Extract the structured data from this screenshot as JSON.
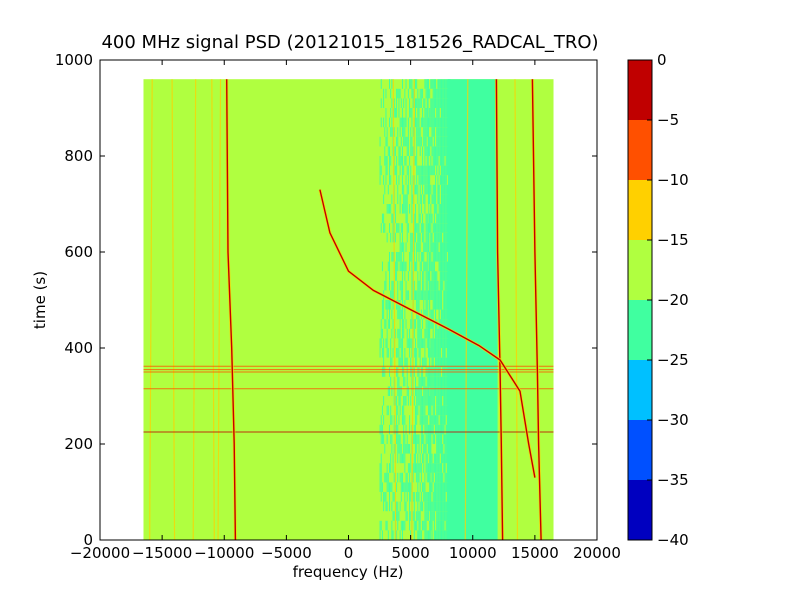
{
  "chart_data": {
    "type": "heatmap",
    "title": "400 MHz signal PSD (20121015_181526_RADCAL_TRO)",
    "xlabel": "frequency (Hz)",
    "ylabel": "time (s)",
    "xlim": [
      -20000,
      20000
    ],
    "ylim": [
      0,
      1000
    ],
    "xticks": [
      -20000,
      -15000,
      -10000,
      -5000,
      0,
      5000,
      10000,
      15000,
      20000
    ],
    "xtick_labels": [
      "−20000",
      "−15000",
      "−10000",
      "−5000",
      "0",
      "5000",
      "10000",
      "15000",
      "20000"
    ],
    "yticks": [
      0,
      200,
      400,
      600,
      800,
      1000
    ],
    "ytick_labels": [
      "0",
      "200",
      "400",
      "600",
      "800",
      "1000"
    ],
    "data_extent": {
      "x": [
        -16500,
        16500
      ],
      "y": [
        0,
        960
      ]
    },
    "colorbar": {
      "levels": [
        -40,
        -35,
        -30,
        -25,
        -20,
        -15,
        -10,
        -5,
        0
      ],
      "tick_labels": [
        "−40",
        "−35",
        "−30",
        "−25",
        "−20",
        "−15",
        "−10",
        "−5",
        "0"
      ],
      "colors": [
        "#0000c0",
        "#0050ff",
        "#00c0ff",
        "#40ffa0",
        "#b0ff40",
        "#ffd000",
        "#ff5000",
        "#c00000"
      ]
    },
    "regions": [
      {
        "x": [
          -16500,
          3000
        ],
        "level": "-20 to -15"
      },
      {
        "x": [
          3000,
          8000
        ],
        "level": "-25 to -20 (mixed)"
      },
      {
        "x": [
          8000,
          12000
        ],
        "level": "-25 to -20"
      },
      {
        "x": [
          12000,
          16500
        ],
        "level": "-20 to -15"
      }
    ],
    "signal_tracks": [
      {
        "name": "carrier-left",
        "points": [
          [
            -9800,
            960
          ],
          [
            -9700,
            600
          ],
          [
            -9400,
            400
          ],
          [
            -9200,
            200
          ],
          [
            -9100,
            0
          ]
        ]
      },
      {
        "name": "carrier-right",
        "points": [
          [
            11900,
            960
          ],
          [
            12000,
            600
          ],
          [
            12200,
            350
          ],
          [
            12300,
            200
          ],
          [
            12400,
            0
          ]
        ]
      },
      {
        "name": "sideband-right",
        "points": [
          [
            14800,
            960
          ],
          [
            15000,
            600
          ],
          [
            15200,
            350
          ],
          [
            15300,
            200
          ],
          [
            15500,
            0
          ]
        ]
      },
      {
        "name": "doppler-sweep",
        "points": [
          [
            -2300,
            730
          ],
          [
            -1500,
            640
          ],
          [
            0,
            560
          ],
          [
            2000,
            520
          ],
          [
            5000,
            480
          ],
          [
            8000,
            440
          ],
          [
            10500,
            405
          ],
          [
            12200,
            375
          ],
          [
            13800,
            310
          ],
          [
            14500,
            200
          ],
          [
            15000,
            130
          ]
        ]
      }
    ],
    "interference_lines_time": [
      225,
      315,
      350,
      355,
      362
    ]
  }
}
